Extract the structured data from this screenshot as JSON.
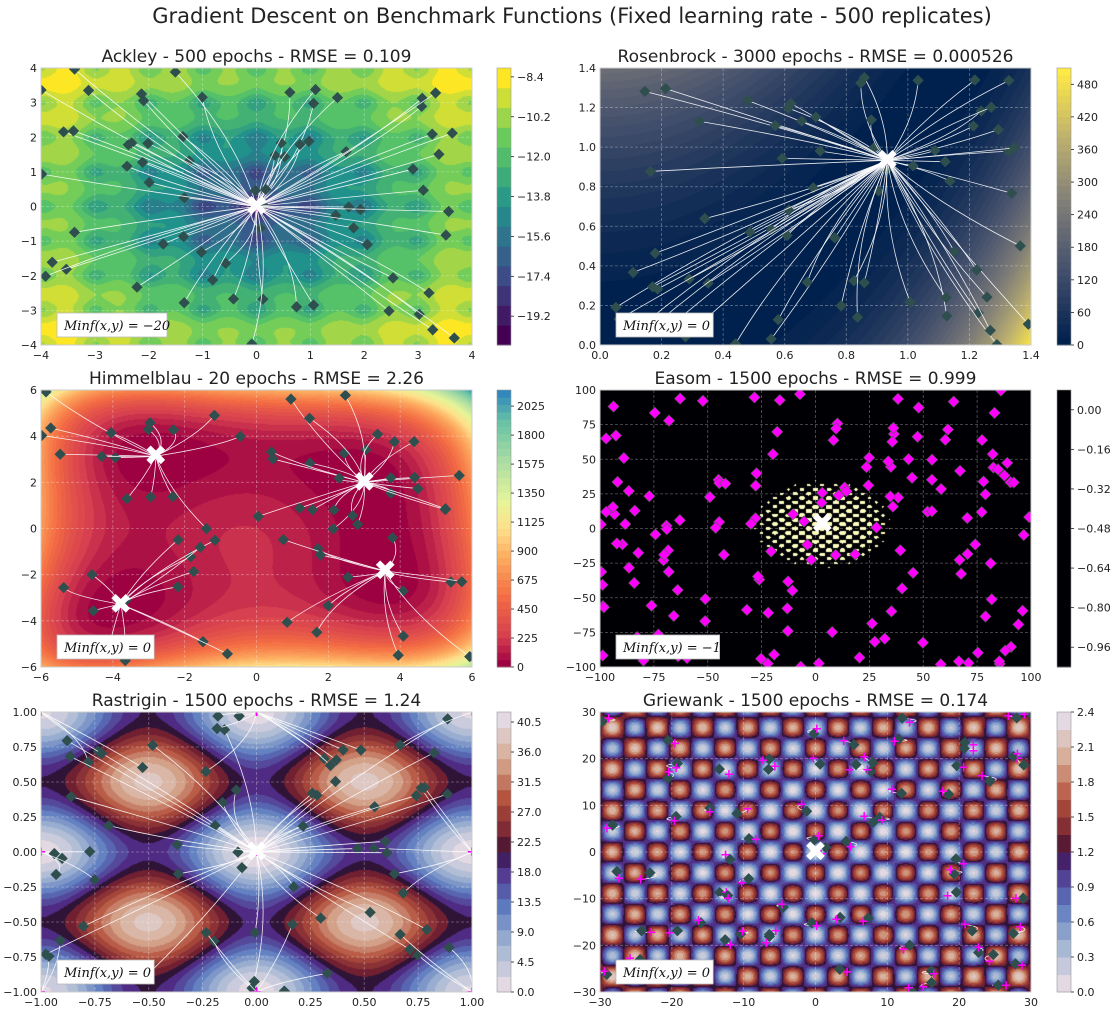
{
  "suptitle": "Gradient Descent on Benchmark Functions (Fixed learning rate - 500 replicates)",
  "colors": {
    "marker": "#2f4f4f",
    "minimum": "#ffffff",
    "end": "#ff00ff"
  },
  "chart_data": [
    {
      "type": "contour",
      "function": "Ackley",
      "title": "Ackley - 500 epochs - RMSE = 0.109",
      "xlim": [
        -4,
        4
      ],
      "ylim": [
        -4,
        4
      ],
      "xticks": [
        "−4",
        "−3",
        "−2",
        "−1",
        "0",
        "1",
        "2",
        "3",
        "4"
      ],
      "yticks": [
        "−4",
        "−3",
        "−2",
        "−1",
        "0",
        "1",
        "2",
        "3",
        "4"
      ],
      "colormap": "viridis",
      "colorbar_ticks": [
        "−8.4",
        "−10.2",
        "−12.0",
        "−13.8",
        "−15.6",
        "−17.4",
        "−19.2"
      ],
      "colorbar_range": [
        -20.5,
        -8.0
      ],
      "annotation": "Minf(x,y) = −20",
      "minima": [
        [
          0,
          0
        ]
      ],
      "epochs": 500,
      "rmse": 0.109
    },
    {
      "type": "contour",
      "function": "Rosenbrock",
      "title": "Rosenbrock - 3000 epochs - RMSE = 0.000526",
      "xlim": [
        0,
        1.5
      ],
      "ylim": [
        0,
        1.5
      ],
      "xticks": [
        "0.0",
        "0.2",
        "0.4",
        "0.6",
        "0.8",
        "1.0",
        "1.2",
        "1.4"
      ],
      "yticks": [
        "0.0",
        "0.2",
        "0.4",
        "0.6",
        "0.8",
        "1.0",
        "1.2",
        "1.4"
      ],
      "colormap": "cividis",
      "colorbar_ticks": [
        "0",
        "60",
        "120",
        "180",
        "240",
        "300",
        "360",
        "420",
        "480"
      ],
      "colorbar_range": [
        0,
        510
      ],
      "annotation": "Minf(x,y) = 0",
      "minima": [
        [
          1,
          1
        ]
      ],
      "epochs": 3000,
      "rmse": 0.000526
    },
    {
      "type": "contour",
      "function": "Himmelblau",
      "title": "Himmelblau - 20 epochs - RMSE = 2.26",
      "xlim": [
        -6,
        6
      ],
      "ylim": [
        -6,
        6
      ],
      "xticks": [
        "−6",
        "−4",
        "−2",
        "0",
        "2",
        "4",
        "6"
      ],
      "yticks": [
        "−6",
        "−4",
        "−2",
        "0",
        "2",
        "4",
        "6"
      ],
      "colormap": "spectral",
      "colorbar_ticks": [
        "0",
        "225",
        "450",
        "675",
        "900",
        "1125",
        "1350",
        "1575",
        "1800",
        "2025"
      ],
      "colorbar_range": [
        0,
        2150
      ],
      "annotation": "Minf(x,y) = 0",
      "minima": [
        [
          3,
          2
        ],
        [
          -2.805,
          3.131
        ],
        [
          -3.779,
          -3.283
        ],
        [
          3.584,
          -1.848
        ]
      ],
      "epochs": 20,
      "rmse": 2.26
    },
    {
      "type": "contour",
      "function": "Easom",
      "title": "Easom - 1500 epochs - RMSE = 0.999",
      "xlim": [
        -100,
        100
      ],
      "ylim": [
        -100,
        100
      ],
      "xticks": [
        "−100",
        "−75",
        "−50",
        "−25",
        "0",
        "25",
        "50",
        "75",
        "100"
      ],
      "yticks": [
        "−100",
        "−75",
        "−50",
        "−25",
        "0",
        "25",
        "50",
        "75",
        "100"
      ],
      "colormap": "magma",
      "colorbar_ticks": [
        "0.00",
        "−0.16",
        "−0.32",
        "−0.48",
        "−0.64",
        "−0.80",
        "−0.96"
      ],
      "colorbar_range": [
        -1.04,
        0.08
      ],
      "annotation": "Minf(x,y) = −1",
      "minima": [
        [
          3.14,
          3.14
        ]
      ],
      "epochs": 1500,
      "rmse": 0.999
    },
    {
      "type": "contour",
      "function": "Rastrigin",
      "title": "Rastrigin - 1500 epochs - RMSE = 1.24",
      "xlim": [
        -1,
        1
      ],
      "ylim": [
        -1,
        1
      ],
      "xticks": [
        "−1.00",
        "−0.75",
        "−0.50",
        "−0.25",
        "0.00",
        "0.25",
        "0.50",
        "0.75",
        "1.00"
      ],
      "yticks": [
        "−1.00",
        "−0.75",
        "−0.50",
        "−0.25",
        "0.00",
        "0.25",
        "0.50",
        "0.75",
        "1.00"
      ],
      "colormap": "twilight",
      "colorbar_ticks": [
        "0.0",
        "4.5",
        "9.0",
        "13.5",
        "18.0",
        "22.5",
        "27.0",
        "31.5",
        "36.0",
        "40.5"
      ],
      "colorbar_range": [
        0,
        42
      ],
      "annotation": "Minf(x,y) = 0",
      "minima": [
        [
          0,
          0
        ]
      ],
      "epochs": 1500,
      "rmse": 1.24
    },
    {
      "type": "contour",
      "function": "Griewank",
      "title": "Griewank - 1500 epochs - RMSE = 0.174",
      "xlim": [
        -30,
        30
      ],
      "ylim": [
        -30,
        30
      ],
      "xticks": [
        "−30",
        "−20",
        "−10",
        "0",
        "10",
        "20",
        "30"
      ],
      "yticks": [
        "−30",
        "−20",
        "−10",
        "0",
        "10",
        "20",
        "30"
      ],
      "colormap": "twilight",
      "colorbar_ticks": [
        "0.0",
        "0.3",
        "0.6",
        "0.9",
        "1.2",
        "1.5",
        "1.8",
        "2.1",
        "2.4"
      ],
      "colorbar_range": [
        0,
        2.4
      ],
      "annotation": "Minf(x,y) = 0",
      "minima": [
        [
          0,
          0
        ]
      ],
      "epochs": 1500,
      "rmse": 0.174
    }
  ]
}
